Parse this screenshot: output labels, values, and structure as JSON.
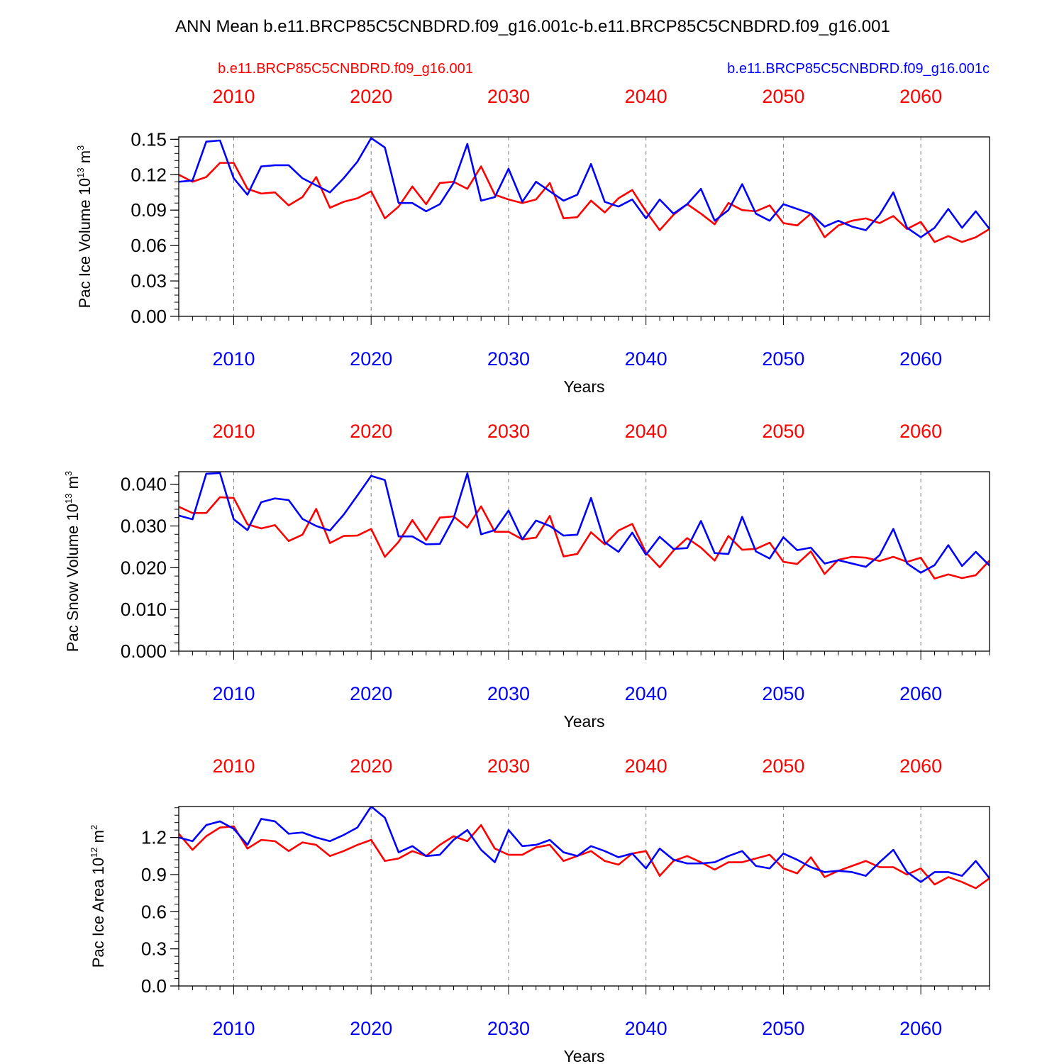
{
  "figure": {
    "title": "ANN Mean b.e11.BRCP85C5CNBDRD.f09_g16.001c-b.e11.BRCP85C5CNBDRD.f09_g16.001",
    "case_red": "b.e11.BRCP85C5CNBDRD.f09_g16.001",
    "case_blue": "b.e11.BRCP85C5CNBDRD.f09_g16.001c",
    "colors": {
      "red": "#ff0000",
      "blue": "#0000ff",
      "frame": "#000000",
      "grid": "#808080"
    }
  },
  "chart_data": [
    {
      "type": "line",
      "title": "",
      "ylabel": "Pac Ice Volume 10",
      "ylabel_exp": "13",
      "ylabel_unit": "m",
      "ylabel_unit_exp": "3",
      "xlabel": "Years",
      "xlim": [
        2006,
        2065
      ],
      "ylim": [
        0,
        0.152
      ],
      "yticks": [
        0.0,
        0.03,
        0.06,
        0.09,
        0.12,
        0.15
      ],
      "yticklabels": [
        "0.00",
        "0.03",
        "0.06",
        "0.09",
        "0.12",
        "0.15"
      ],
      "yminor_step": 0.006,
      "xticks": [
        2010,
        2020,
        2030,
        2040,
        2050,
        2060
      ],
      "xticklabels": [
        "2010",
        "2020",
        "2030",
        "2040",
        "2050",
        "2060"
      ],
      "grid": "vertical dashed at major x ticks",
      "x_start": 2006,
      "series": [
        {
          "name": "b.e11.BRCP85C5CNBDRD.f09_g16.001",
          "color": "red",
          "values": [
            0.12,
            0.114,
            0.118,
            0.13,
            0.13,
            0.108,
            0.104,
            0.105,
            0.094,
            0.101,
            0.118,
            0.092,
            0.097,
            0.1,
            0.106,
            0.083,
            0.093,
            0.11,
            0.095,
            0.113,
            0.114,
            0.108,
            0.127,
            0.103,
            0.099,
            0.096,
            0.099,
            0.113,
            0.083,
            0.084,
            0.098,
            0.088,
            0.1,
            0.107,
            0.089,
            0.073,
            0.086,
            0.095,
            0.087,
            0.078,
            0.096,
            0.09,
            0.089,
            0.094,
            0.079,
            0.077,
            0.087,
            0.067,
            0.077,
            0.081,
            0.083,
            0.079,
            0.085,
            0.074,
            0.08,
            0.063,
            0.068,
            0.063,
            0.067,
            0.074
          ]
        },
        {
          "name": "b.e11.BRCP85C5CNBDRD.f09_g16.001c",
          "color": "blue",
          "values": [
            0.114,
            0.115,
            0.148,
            0.149,
            0.117,
            0.103,
            0.127,
            0.128,
            0.128,
            0.117,
            0.111,
            0.105,
            0.117,
            0.131,
            0.151,
            0.143,
            0.096,
            0.096,
            0.089,
            0.095,
            0.113,
            0.146,
            0.098,
            0.101,
            0.125,
            0.097,
            0.114,
            0.106,
            0.098,
            0.103,
            0.129,
            0.097,
            0.093,
            0.099,
            0.083,
            0.099,
            0.087,
            0.095,
            0.108,
            0.081,
            0.09,
            0.112,
            0.087,
            0.081,
            0.095,
            0.091,
            0.087,
            0.076,
            0.081,
            0.076,
            0.073,
            0.086,
            0.105,
            0.075,
            0.067,
            0.075,
            0.091,
            0.075,
            0.089,
            0.074
          ]
        }
      ]
    },
    {
      "type": "line",
      "title": "",
      "ylabel": "Pac Snow Volume 10",
      "ylabel_exp": "13",
      "ylabel_unit": "m",
      "ylabel_unit_exp": "3",
      "xlabel": "Years",
      "xlim": [
        2006,
        2065
      ],
      "ylim": [
        0,
        0.043
      ],
      "yticks": [
        0.0,
        0.01,
        0.02,
        0.03,
        0.04
      ],
      "yticklabels": [
        "0.000",
        "0.010",
        "0.020",
        "0.030",
        "0.040"
      ],
      "yminor_step": 0.002,
      "xticks": [
        2010,
        2020,
        2030,
        2040,
        2050,
        2060
      ],
      "xticklabels": [
        "2010",
        "2020",
        "2030",
        "2040",
        "2050",
        "2060"
      ],
      "grid": "vertical dashed at major x ticks",
      "x_start": 2006,
      "series": [
        {
          "name": "b.e11.BRCP85C5CNBDRD.f09_g16.001",
          "color": "red",
          "values": [
            0.0346,
            0.0331,
            0.0331,
            0.0369,
            0.0367,
            0.0304,
            0.0294,
            0.0302,
            0.0264,
            0.0279,
            0.0341,
            0.0259,
            0.0276,
            0.0277,
            0.0293,
            0.0226,
            0.0262,
            0.0314,
            0.0266,
            0.032,
            0.0323,
            0.0296,
            0.0347,
            0.0286,
            0.0286,
            0.0268,
            0.0272,
            0.0324,
            0.0227,
            0.0233,
            0.0285,
            0.0256,
            0.0289,
            0.0305,
            0.0236,
            0.0201,
            0.0241,
            0.0271,
            0.0248,
            0.0217,
            0.0276,
            0.0243,
            0.0245,
            0.026,
            0.0214,
            0.0209,
            0.0239,
            0.0185,
            0.0219,
            0.0226,
            0.0224,
            0.0216,
            0.0226,
            0.0214,
            0.0224,
            0.0174,
            0.0184,
            0.0175,
            0.0182,
            0.0217
          ]
        },
        {
          "name": "b.e11.BRCP85C5CNBDRD.f09_g16.001c",
          "color": "blue",
          "values": [
            0.0325,
            0.0316,
            0.0425,
            0.0427,
            0.0316,
            0.029,
            0.0357,
            0.0366,
            0.0362,
            0.0317,
            0.03,
            0.0289,
            0.0327,
            0.0373,
            0.042,
            0.041,
            0.0275,
            0.0275,
            0.0256,
            0.0257,
            0.0318,
            0.0426,
            0.028,
            0.029,
            0.0337,
            0.0268,
            0.0313,
            0.03,
            0.0277,
            0.0279,
            0.0367,
            0.0261,
            0.0238,
            0.0284,
            0.0231,
            0.0274,
            0.0245,
            0.0247,
            0.0312,
            0.0235,
            0.0233,
            0.0322,
            0.0239,
            0.0222,
            0.0273,
            0.0242,
            0.0248,
            0.021,
            0.0218,
            0.021,
            0.0202,
            0.023,
            0.0293,
            0.021,
            0.0188,
            0.0206,
            0.0254,
            0.0204,
            0.0238,
            0.0205
          ]
        }
      ]
    },
    {
      "type": "line",
      "title": "",
      "ylabel": "Pac Ice Area 10",
      "ylabel_exp": "12",
      "ylabel_unit": "m",
      "ylabel_unit_exp": "2",
      "xlabel": "Years",
      "xlim": [
        2006,
        2065
      ],
      "ylim": [
        0,
        1.45
      ],
      "yticks": [
        0.0,
        0.3,
        0.6,
        0.9,
        1.2
      ],
      "yticklabels": [
        "0.0",
        "0.3",
        "0.6",
        "0.9",
        "1.2"
      ],
      "yminor_step": 0.06,
      "xticks": [
        2010,
        2020,
        2030,
        2040,
        2050,
        2060
      ],
      "xticklabels": [
        "2010",
        "2020",
        "2030",
        "2040",
        "2050",
        "2060"
      ],
      "grid": "vertical dashed at major x ticks",
      "x_start": 2006,
      "series": [
        {
          "name": "b.e11.BRCP85C5CNBDRD.f09_g16.001",
          "color": "red",
          "values": [
            1.23,
            1.1,
            1.21,
            1.28,
            1.29,
            1.11,
            1.18,
            1.17,
            1.09,
            1.16,
            1.14,
            1.05,
            1.09,
            1.14,
            1.18,
            1.01,
            1.03,
            1.09,
            1.05,
            1.14,
            1.21,
            1.17,
            1.3,
            1.11,
            1.06,
            1.06,
            1.12,
            1.14,
            1.01,
            1.05,
            1.09,
            1.01,
            0.98,
            1.07,
            1.09,
            0.89,
            1.01,
            1.05,
            1.0,
            0.94,
            1.0,
            1.0,
            1.03,
            1.06,
            0.95,
            0.91,
            1.04,
            0.88,
            0.93,
            0.97,
            1.01,
            0.96,
            0.96,
            0.9,
            0.95,
            0.82,
            0.88,
            0.84,
            0.79,
            0.87
          ]
        },
        {
          "name": "b.e11.BRCP85C5CNBDRD.f09_g16.001c",
          "color": "blue",
          "values": [
            1.2,
            1.17,
            1.3,
            1.33,
            1.27,
            1.14,
            1.35,
            1.33,
            1.23,
            1.24,
            1.2,
            1.17,
            1.22,
            1.28,
            1.45,
            1.36,
            1.08,
            1.13,
            1.05,
            1.06,
            1.18,
            1.26,
            1.1,
            1.0,
            1.26,
            1.13,
            1.14,
            1.18,
            1.08,
            1.05,
            1.13,
            1.09,
            1.04,
            1.07,
            0.95,
            1.11,
            1.02,
            0.99,
            0.99,
            1.0,
            1.05,
            1.09,
            0.97,
            0.95,
            1.07,
            1.02,
            0.96,
            0.92,
            0.93,
            0.92,
            0.89,
            1.0,
            1.1,
            0.92,
            0.84,
            0.92,
            0.92,
            0.89,
            1.01,
            0.87
          ]
        }
      ]
    }
  ]
}
